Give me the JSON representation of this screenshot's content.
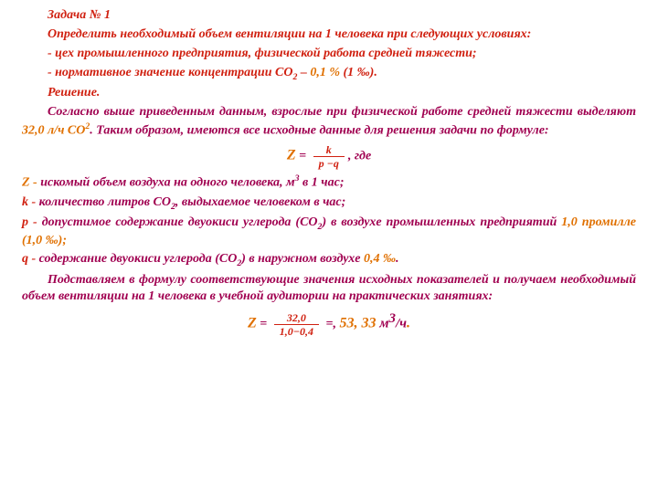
{
  "title": "Задача № 1",
  "problem": {
    "line1": "Определить необходимый объем вентиляции на 1 человека при следующих условиях:",
    "line2_pre": "- цех промышленного предприятия, физической работа средней тяжести;",
    "line3_pre": "- нормативное значение концентрации СО",
    "line3_sub": "2",
    "line3_mid": " – ",
    "line3_val": "0,1 %",
    "line3_post": " (1 ‰)."
  },
  "solution_label": "Решение.",
  "para1_a": "Согласно выше приведенным данным, взрослые при физической работе средней тяжести выделяют ",
  "para1_val": "32,0 л/ч СО",
  "para1_sup": "2",
  "para1_b": ". Таким образом, имеются все исходные данные для решения задачи по формуле:",
  "formula": {
    "Z": "Z",
    "eq": " = ",
    "num": "k",
    "den": "p −q",
    "where": ",  где"
  },
  "defs": {
    "z_a": "Z - ",
    "z_b": "искомый объем воздуха на одного человека, м",
    "z_sup": "3",
    "z_c": " в 1 час;",
    "k_a": "k - ",
    "k_b": "количество литров СО",
    "k_sub": "2",
    "k_c": ", выдыхаемое человеком в час;",
    "p_a": "p - ",
    "p_b": "допустимое содержание двуокиси углерода (СО",
    "p_sub": "2",
    "p_c": ") в воздухе промышленных предприятий ",
    "p_val": "1,0 промилле (1,0 ‰);",
    "q_a": "q - ",
    "q_b": "содержание двуокиси углерода (СО",
    "q_sub": "2",
    "q_c": ") в наружном воздухе ",
    "q_val": "0,4 ‰",
    "q_end": "."
  },
  "para2": "Подставляем в формулу соответствующие значения исходных показателей и получаем необходимый объем вентиляции на 1 человека в учебной аудитории на практических занятиях:",
  "formula2": {
    "Z": "Z",
    "eq": " = ",
    "num": "32,0",
    "den": "1,0−0,4",
    "eq2": " =, ",
    "result": "53, 33",
    "unit_a": " м",
    "unit_sup": "3",
    "unit_b": "/ч",
    "dot": "."
  },
  "colors": {
    "bg": "#ffffff",
    "text": "#a00050",
    "red": "#d02010",
    "orange": "#e07000"
  },
  "font": {
    "family": "Georgia / Times",
    "size_pt": 14,
    "weight": "bold",
    "style": "italic"
  }
}
